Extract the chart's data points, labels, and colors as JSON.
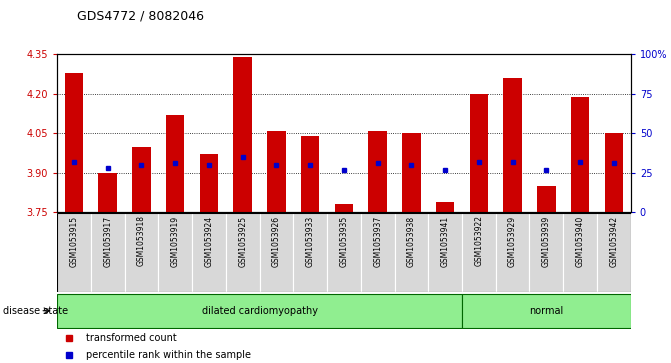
{
  "title": "GDS4772 / 8082046",
  "samples": [
    "GSM1053915",
    "GSM1053917",
    "GSM1053918",
    "GSM1053919",
    "GSM1053924",
    "GSM1053925",
    "GSM1053926",
    "GSM1053933",
    "GSM1053935",
    "GSM1053937",
    "GSM1053938",
    "GSM1053941",
    "GSM1053922",
    "GSM1053929",
    "GSM1053939",
    "GSM1053940",
    "GSM1053942"
  ],
  "bar_tops": [
    4.28,
    3.9,
    4.0,
    4.12,
    3.97,
    4.34,
    4.06,
    4.04,
    3.78,
    4.06,
    4.05,
    3.79,
    4.2,
    4.26,
    3.85,
    4.19,
    4.05
  ],
  "percentile_values": [
    32,
    28,
    30,
    31,
    30,
    35,
    30,
    30,
    27,
    31,
    30,
    27,
    32,
    32,
    27,
    32,
    31
  ],
  "bar_bottom": 3.75,
  "ylim_left": [
    3.75,
    4.35
  ],
  "ylim_right": [
    0,
    100
  ],
  "yticks_left": [
    3.75,
    3.9,
    4.05,
    4.2,
    4.35
  ],
  "yticks_right": [
    0,
    25,
    50,
    75,
    100
  ],
  "ytick_labels_right": [
    "0",
    "25",
    "50",
    "75",
    "100%"
  ],
  "bar_color": "#cc0000",
  "dot_color": "#0000cc",
  "disease_state_groups": [
    {
      "label": "dilated cardiomyopathy",
      "n_samples": 12
    },
    {
      "label": "normal",
      "n_samples": 5
    }
  ],
  "legend_items": [
    {
      "label": "transformed count",
      "color": "#cc0000"
    },
    {
      "label": "percentile rank within the sample",
      "color": "#0000cc"
    }
  ],
  "bg_color": "#d8d8d8",
  "left_axis_color": "#cc0000",
  "right_axis_color": "#0000cc",
  "grid_color": "black",
  "disease_box_color": "#90ee90",
  "disease_box_edge": "#006600"
}
